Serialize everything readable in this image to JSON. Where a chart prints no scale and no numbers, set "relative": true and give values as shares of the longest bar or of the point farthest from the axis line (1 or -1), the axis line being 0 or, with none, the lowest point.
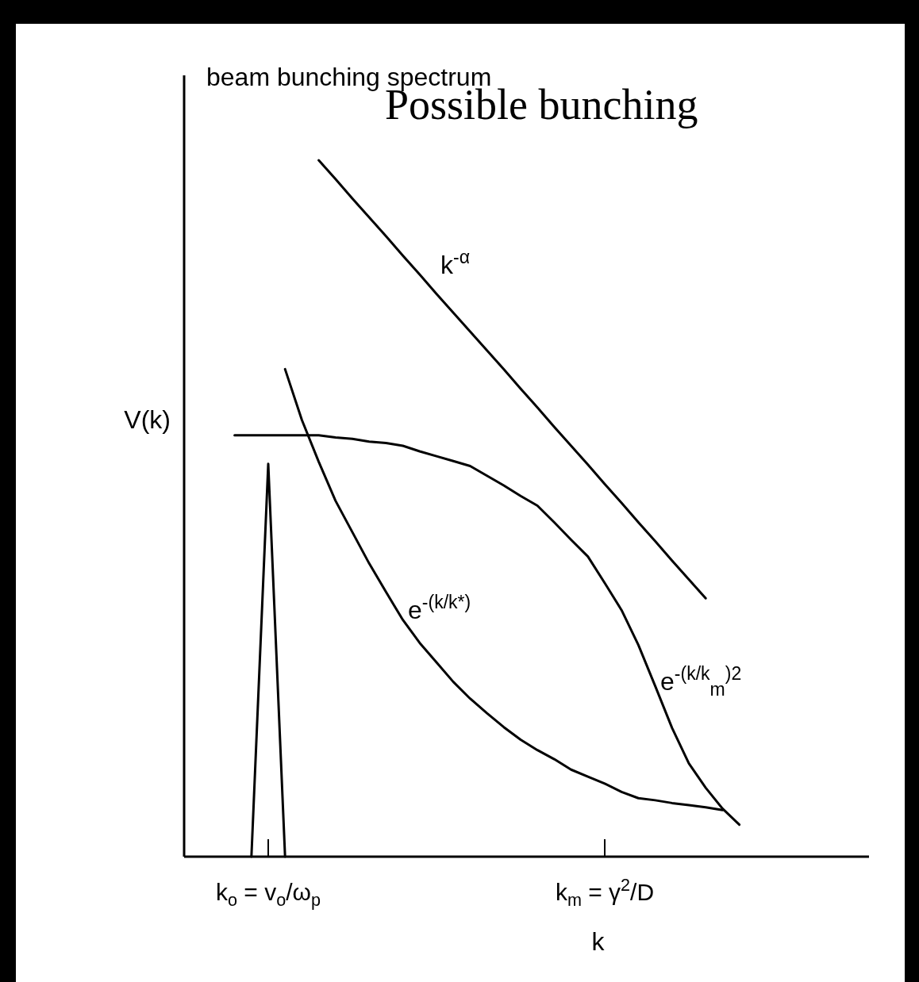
{
  "chart_data": {
    "type": "line",
    "relative": true,
    "title": "Possible bunching",
    "subtitle": "beam bunching spectrum",
    "ylabel": "V(k)",
    "xlabel": "k",
    "categories": [
      null,
      null,
      null,
      null,
      null,
      "k$_{o}$ = v$_{o}$/ω$_{p}$",
      null,
      null,
      null,
      null,
      null,
      null,
      null,
      null,
      null,
      null,
      null,
      null,
      null,
      null,
      null,
      null,
      null,
      null,
      null,
      "k$_{m}$ = γ$^{2}$/D",
      null,
      null,
      null,
      null,
      null,
      null,
      null,
      null,
      null,
      null,
      null,
      null,
      null,
      null,
      null
    ],
    "line_style": "solid",
    "series": [
      {
        "name": "k$^{-α}$",
        "color": "#000000",
        "values": [
          null,
          null,
          null,
          null,
          null,
          null,
          null,
          null,
          1,
          0.973,
          0.945,
          0.918,
          0.891,
          0.863,
          0.836,
          0.808,
          0.781,
          0.754,
          0.727,
          0.7,
          0.672,
          0.645,
          0.617,
          0.59,
          0.563,
          0.535,
          0.508,
          0.48,
          0.453,
          0.425,
          0.398,
          0.371,
          null,
          null,
          null,
          null,
          null,
          null,
          null,
          null,
          null
        ]
      },
      {
        "name": "e$^{-(k/k*)}$",
        "color": "#000000",
        "values": [
          null,
          null,
          null,
          null,
          null,
          null,
          0.7,
          0.627,
          0.567,
          0.511,
          0.466,
          0.421,
          0.38,
          0.34,
          0.307,
          0.279,
          0.251,
          0.227,
          0.206,
          0.186,
          0.168,
          0.153,
          0.14,
          0.125,
          0.115,
          0.105,
          0.093,
          0.084,
          0.081,
          0.077,
          0.074,
          0.071,
          0.067,
          null,
          null,
          null,
          null,
          null,
          null,
          null,
          null
        ]
      },
      {
        "name": "e$^{-(k/k}$$_{m}$$^{)2}$",
        "color": "#000000",
        "values": [
          null,
          null,
          null,
          0.605,
          0.605,
          0.605,
          0.605,
          0.605,
          0.605,
          0.602,
          0.6,
          0.596,
          0.594,
          0.59,
          0.582,
          0.575,
          0.568,
          0.561,
          0.547,
          0.533,
          0.518,
          0.504,
          0.48,
          0.455,
          0.431,
          0.393,
          0.354,
          0.304,
          0.245,
          0.185,
          0.134,
          0.099,
          0.069,
          0.046,
          null,
          null,
          null,
          null,
          null,
          null,
          null
        ]
      },
      {
        "color": "#000000",
        "values": [
          null,
          null,
          null,
          null,
          0,
          0.564,
          0,
          null,
          null,
          null,
          null,
          null,
          null,
          null,
          null,
          null,
          null,
          null,
          null,
          null,
          null,
          null,
          null,
          null,
          null,
          null,
          null,
          null,
          null,
          null,
          null,
          null,
          null,
          null,
          null,
          null,
          null,
          null,
          null,
          null,
          null
        ]
      }
    ]
  }
}
